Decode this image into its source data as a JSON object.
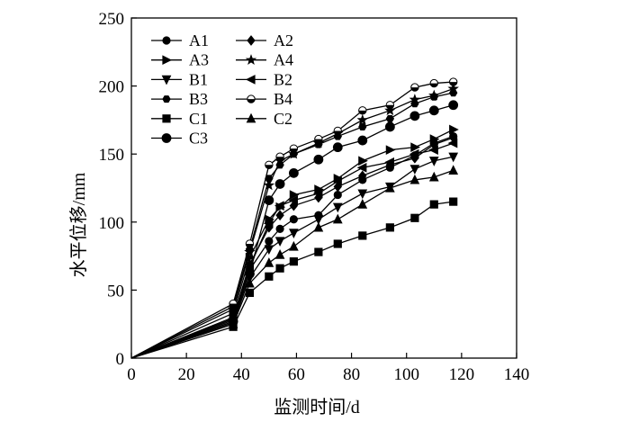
{
  "chart_data": {
    "type": "line",
    "title": "",
    "xlabel": "监测时间/d",
    "ylabel": "水平位移/mm",
    "xlim": [
      0,
      140
    ],
    "ylim": [
      0,
      250
    ],
    "xticks": [
      0,
      20,
      40,
      60,
      80,
      100,
      120,
      140
    ],
    "yticks": [
      0,
      50,
      100,
      150,
      200,
      250
    ],
    "grid": false,
    "legend_position": "top-left",
    "x": [
      0,
      37,
      43,
      50,
      54,
      59,
      68,
      75,
      84,
      94,
      103,
      110,
      117
    ],
    "series": [
      {
        "name": "A1",
        "marker": "circle",
        "values": [
          0,
          28,
          65,
          86,
          95,
          102,
          105,
          120,
          131,
          140,
          149,
          158,
          163
        ]
      },
      {
        "name": "A2",
        "marker": "diamond",
        "values": [
          0,
          30,
          69,
          96,
          105,
          112,
          118,
          126,
          134,
          142,
          147,
          157,
          162
        ]
      },
      {
        "name": "A3",
        "marker": "triangle-right",
        "values": [
          0,
          33,
          74,
          102,
          111,
          120,
          124,
          132,
          145,
          153,
          155,
          161,
          168
        ]
      },
      {
        "name": "A4",
        "marker": "star",
        "values": [
          0,
          36,
          78,
          127,
          145,
          150,
          158,
          165,
          175,
          182,
          190,
          193,
          198
        ]
      },
      {
        "name": "B1",
        "marker": "triangle-down",
        "values": [
          0,
          26,
          59,
          80,
          86,
          92,
          102,
          111,
          121,
          126,
          139,
          145,
          148
        ]
      },
      {
        "name": "B2",
        "marker": "triangle-left",
        "values": [
          0,
          29,
          67,
          99,
          112,
          116,
          121,
          130,
          140,
          144,
          150,
          153,
          158
        ]
      },
      {
        "name": "B3",
        "marker": "hexagon",
        "values": [
          0,
          38,
          80,
          132,
          142,
          150,
          157,
          163,
          170,
          176,
          187,
          192,
          195
        ]
      },
      {
        "name": "B4",
        "marker": "half-circle",
        "values": [
          0,
          40,
          84,
          142,
          148,
          154,
          161,
          167,
          182,
          186,
          199,
          202,
          203
        ]
      },
      {
        "name": "C1",
        "marker": "square",
        "values": [
          0,
          23,
          48,
          60,
          66,
          71,
          78,
          84,
          90,
          96,
          103,
          113,
          115
        ]
      },
      {
        "name": "C2",
        "marker": "triangle-up",
        "values": [
          0,
          25,
          55,
          70,
          76,
          82,
          96,
          102,
          113,
          125,
          131,
          133,
          138
        ]
      },
      {
        "name": "C3",
        "marker": "circle-large",
        "values": [
          0,
          27,
          62,
          116,
          128,
          136,
          146,
          155,
          160,
          170,
          178,
          182,
          186
        ]
      }
    ]
  }
}
